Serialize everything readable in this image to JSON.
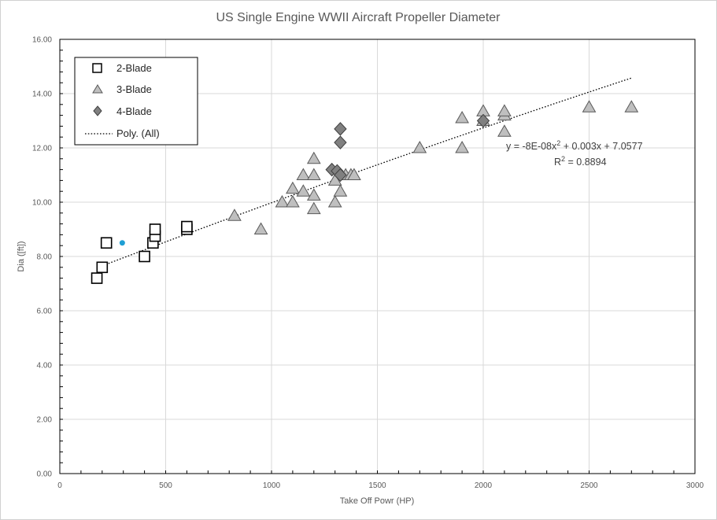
{
  "chart_data": {
    "type": "scatter",
    "title": "US Single Engine WWII Aircraft Propeller Diameter",
    "xlabel": "Take Off Powr (HP)",
    "ylabel": "Dia ([ft])",
    "xlim": [
      0,
      3000
    ],
    "ylim": [
      0,
      16
    ],
    "x_ticks": [
      0,
      500,
      1000,
      1500,
      2000,
      2500,
      3000
    ],
    "y_ticks": [
      0,
      2,
      4,
      6,
      8,
      10,
      12,
      14,
      16
    ],
    "y_tick_labels": [
      "0.00",
      "2.00",
      "4.00",
      "6.00",
      "8.00",
      "10.00",
      "12.00",
      "14.00",
      "16.00"
    ],
    "grid": true,
    "legend_position": "top-left",
    "series": [
      {
        "name": "2-Blade",
        "marker": "square",
        "color": "#ffffff",
        "stroke": "#000000",
        "points": [
          [
            175,
            7.2
          ],
          [
            200,
            7.6
          ],
          [
            220,
            8.5
          ],
          [
            400,
            8.0
          ],
          [
            440,
            8.5
          ],
          [
            450,
            8.75
          ],
          [
            450,
            9.0
          ],
          [
            600,
            9.0
          ],
          [
            600,
            9.1
          ]
        ]
      },
      {
        "name": "3-Blade",
        "marker": "triangle",
        "color": "#bfbfbf",
        "stroke": "#595959",
        "points": [
          [
            825,
            9.5
          ],
          [
            950,
            9.0
          ],
          [
            1050,
            10.0
          ],
          [
            1100,
            10.0
          ],
          [
            1100,
            10.5
          ],
          [
            1150,
            10.4
          ],
          [
            1150,
            11.0
          ],
          [
            1200,
            9.75
          ],
          [
            1200,
            10.25
          ],
          [
            1200,
            11.0
          ],
          [
            1200,
            11.6
          ],
          [
            1300,
            10.0
          ],
          [
            1300,
            10.8
          ],
          [
            1325,
            10.4
          ],
          [
            1350,
            11.0
          ],
          [
            1375,
            11.0
          ],
          [
            1390,
            11.0
          ],
          [
            1700,
            12.0
          ],
          [
            1900,
            12.0
          ],
          [
            1900,
            13.1
          ],
          [
            2000,
            13.0
          ],
          [
            2000,
            13.35
          ],
          [
            2100,
            12.6
          ],
          [
            2100,
            13.2
          ],
          [
            2100,
            13.35
          ],
          [
            2500,
            13.5
          ],
          [
            2700,
            13.5
          ]
        ]
      },
      {
        "name": "4-Blade",
        "marker": "diamond",
        "color": "#808080",
        "stroke": "#404040",
        "points": [
          [
            1285,
            11.2
          ],
          [
            1310,
            11.15
          ],
          [
            1325,
            11.0
          ],
          [
            1325,
            12.2
          ],
          [
            1325,
            12.7
          ],
          [
            2000,
            13.0
          ]
        ]
      },
      {
        "name": "",
        "marker": "circle",
        "color": "#1f9fd4",
        "points": [
          [
            295,
            8.5
          ]
        ]
      }
    ],
    "trendline": {
      "name": "Poly. (All)",
      "style": "dotted",
      "color": "#000000",
      "coefficients": {
        "a": -8e-08,
        "b": 0.003,
        "c": 7.0577
      },
      "x_range": [
        190,
        2700
      ],
      "equation": "y = -8E-08x² + 0.003x + 7.0577",
      "r2": "R² = 0.8894"
    }
  },
  "legend": {
    "items": [
      {
        "label": "2-Blade",
        "marker": "square"
      },
      {
        "label": "3-Blade",
        "marker": "triangle"
      },
      {
        "label": "4-Blade",
        "marker": "diamond"
      },
      {
        "label": "Poly. (All)",
        "marker": "dotted-line"
      }
    ]
  },
  "equation": {
    "prefix": "y = -8E-08x",
    "exp": "2",
    "suffix": " + 0.003x + 7.0577",
    "r_prefix": "R",
    "r_exp": "2",
    "r_suffix": " = 0.8894"
  }
}
